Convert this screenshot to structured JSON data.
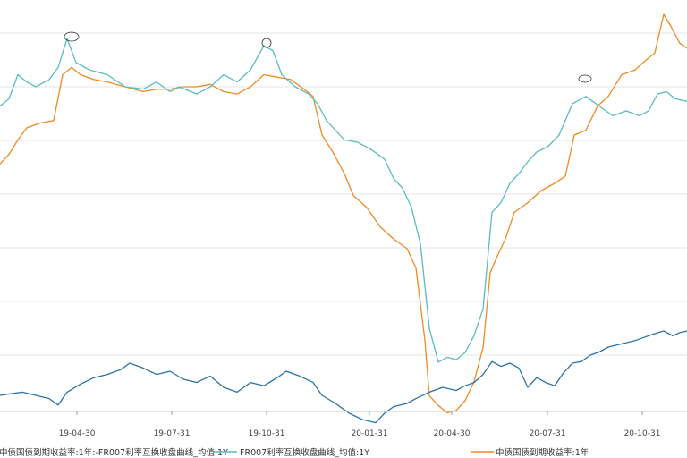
{
  "chart_data": [
    {
      "type": "line",
      "panel": "upper",
      "x_tick_labels": [
        "19-04-30",
        "19-07-31",
        "19-10-31",
        "20-01-31",
        "20-04-30",
        "20-07-31",
        "20-10-31"
      ],
      "grid": "horizontal",
      "series": [
        {
          "name": "FR007利率互换收盘曲线_均值:1Y",
          "color": "#5bbcc0",
          "points": [
            [
              0,
              2.92
            ],
            [
              10,
              2.95
            ],
            [
              20,
              3.05
            ],
            [
              30,
              3.02
            ],
            [
              40,
              3.0
            ],
            [
              55,
              3.03
            ],
            [
              65,
              3.08
            ],
            [
              75,
              3.2
            ],
            [
              85,
              3.1
            ],
            [
              100,
              3.07
            ],
            [
              120,
              3.05
            ],
            [
              140,
              3.0
            ],
            [
              160,
              2.99
            ],
            [
              175,
              3.02
            ],
            [
              190,
              2.98
            ],
            [
              200,
              3.0
            ],
            [
              220,
              2.97
            ],
            [
              235,
              3.0
            ],
            [
              250,
              3.05
            ],
            [
              265,
              3.02
            ],
            [
              280,
              3.07
            ],
            [
              295,
              3.17
            ],
            [
              305,
              3.15
            ],
            [
              315,
              3.05
            ],
            [
              330,
              3.0
            ],
            [
              345,
              2.97
            ],
            [
              355,
              2.93
            ],
            [
              365,
              2.86
            ],
            [
              375,
              2.82
            ],
            [
              385,
              2.78
            ],
            [
              400,
              2.77
            ],
            [
              415,
              2.74
            ],
            [
              430,
              2.7
            ],
            [
              440,
              2.62
            ],
            [
              450,
              2.58
            ],
            [
              460,
              2.5
            ],
            [
              470,
              2.35
            ],
            [
              480,
              2.0
            ],
            [
              490,
              1.86
            ],
            [
              500,
              1.88
            ],
            [
              510,
              1.87
            ],
            [
              520,
              1.9
            ],
            [
              530,
              1.97
            ],
            [
              540,
              2.08
            ],
            [
              550,
              2.48
            ],
            [
              560,
              2.52
            ],
            [
              570,
              2.6
            ],
            [
              580,
              2.64
            ],
            [
              590,
              2.69
            ],
            [
              600,
              2.73
            ],
            [
              612,
              2.75
            ],
            [
              625,
              2.8
            ],
            [
              640,
              2.93
            ],
            [
              655,
              2.96
            ],
            [
              670,
              2.92
            ],
            [
              685,
              2.88
            ],
            [
              700,
              2.9
            ],
            [
              715,
              2.88
            ],
            [
              725,
              2.9
            ],
            [
              735,
              2.97
            ],
            [
              745,
              2.98
            ],
            [
              755,
              2.95
            ],
            [
              768,
              2.94
            ]
          ]
        },
        {
          "name": "中债国债到期收益率:1年",
          "color": "#f08a24",
          "points": [
            [
              0,
              2.68
            ],
            [
              10,
              2.72
            ],
            [
              20,
              2.78
            ],
            [
              30,
              2.83
            ],
            [
              45,
              2.85
            ],
            [
              60,
              2.86
            ],
            [
              70,
              3.05
            ],
            [
              80,
              3.08
            ],
            [
              90,
              3.05
            ],
            [
              105,
              3.03
            ],
            [
              120,
              3.02
            ],
            [
              140,
              3.0
            ],
            [
              160,
              2.98
            ],
            [
              175,
              2.99
            ],
            [
              190,
              2.99
            ],
            [
              205,
              3.0
            ],
            [
              220,
              3.0
            ],
            [
              235,
              3.01
            ],
            [
              250,
              2.98
            ],
            [
              265,
              2.97
            ],
            [
              280,
              3.0
            ],
            [
              295,
              3.05
            ],
            [
              310,
              3.04
            ],
            [
              325,
              3.03
            ],
            [
              340,
              2.99
            ],
            [
              350,
              2.96
            ],
            [
              360,
              2.8
            ],
            [
              372,
              2.73
            ],
            [
              385,
              2.64
            ],
            [
              395,
              2.55
            ],
            [
              410,
              2.5
            ],
            [
              425,
              2.42
            ],
            [
              440,
              2.37
            ],
            [
              455,
              2.33
            ],
            [
              465,
              2.25
            ],
            [
              475,
              1.95
            ],
            [
              480,
              1.72
            ],
            [
              490,
              1.68
            ],
            [
              500,
              1.65
            ],
            [
              510,
              1.66
            ],
            [
              520,
              1.7
            ],
            [
              530,
              1.78
            ],
            [
              540,
              1.92
            ],
            [
              548,
              2.23
            ],
            [
              556,
              2.3
            ],
            [
              565,
              2.37
            ],
            [
              575,
              2.48
            ],
            [
              590,
              2.52
            ],
            [
              605,
              2.57
            ],
            [
              620,
              2.6
            ],
            [
              632,
              2.63
            ],
            [
              642,
              2.8
            ],
            [
              655,
              2.82
            ],
            [
              668,
              2.92
            ],
            [
              680,
              2.96
            ],
            [
              695,
              3.05
            ],
            [
              710,
              3.07
            ],
            [
              722,
              3.11
            ],
            [
              732,
              3.14
            ],
            [
              742,
              3.3
            ],
            [
              750,
              3.25
            ],
            [
              760,
              3.18
            ],
            [
              768,
              3.16
            ]
          ]
        }
      ]
    },
    {
      "type": "line",
      "panel": "lower",
      "series": [
        {
          "name": "中债国债到期收益率:1年:-FR007利率互换收盘曲线_均值:1Y",
          "color": "#2a72a8",
          "points": [
            [
              0,
              -0.25
            ],
            [
              12,
              -0.24
            ],
            [
              25,
              -0.23
            ],
            [
              40,
              -0.25
            ],
            [
              55,
              -0.27
            ],
            [
              65,
              -0.31
            ],
            [
              75,
              -0.23
            ],
            [
              90,
              -0.18
            ],
            [
              105,
              -0.14
            ],
            [
              120,
              -0.12
            ],
            [
              135,
              -0.09
            ],
            [
              145,
              -0.05
            ],
            [
              160,
              -0.08
            ],
            [
              175,
              -0.12
            ],
            [
              190,
              -0.1
            ],
            [
              205,
              -0.15
            ],
            [
              220,
              -0.17
            ],
            [
              235,
              -0.13
            ],
            [
              250,
              -0.2
            ],
            [
              265,
              -0.23
            ],
            [
              280,
              -0.17
            ],
            [
              295,
              -0.19
            ],
            [
              310,
              -0.14
            ],
            [
              320,
              -0.1
            ],
            [
              335,
              -0.13
            ],
            [
              350,
              -0.17
            ],
            [
              360,
              -0.25
            ],
            [
              375,
              -0.3
            ],
            [
              390,
              -0.36
            ],
            [
              405,
              -0.4
            ],
            [
              420,
              -0.42
            ],
            [
              430,
              -0.36
            ],
            [
              440,
              -0.32
            ],
            [
              455,
              -0.3
            ],
            [
              465,
              -0.27
            ],
            [
              480,
              -0.23
            ],
            [
              495,
              -0.2
            ],
            [
              510,
              -0.22
            ],
            [
              520,
              -0.19
            ],
            [
              530,
              -0.17
            ],
            [
              540,
              -0.12
            ],
            [
              550,
              -0.04
            ],
            [
              560,
              -0.07
            ],
            [
              570,
              -0.05
            ],
            [
              580,
              -0.08
            ],
            [
              590,
              -0.2
            ],
            [
              600,
              -0.14
            ],
            [
              610,
              -0.17
            ],
            [
              620,
              -0.19
            ],
            [
              630,
              -0.11
            ],
            [
              640,
              -0.05
            ],
            [
              650,
              -0.04
            ],
            [
              660,
              0.0
            ],
            [
              670,
              0.02
            ],
            [
              680,
              0.05
            ],
            [
              695,
              0.07
            ],
            [
              710,
              0.09
            ],
            [
              720,
              0.11
            ],
            [
              730,
              0.13
            ],
            [
              742,
              0.15
            ],
            [
              752,
              0.12
            ],
            [
              760,
              0.14
            ],
            [
              768,
              0.15
            ]
          ]
        }
      ]
    }
  ]
}
